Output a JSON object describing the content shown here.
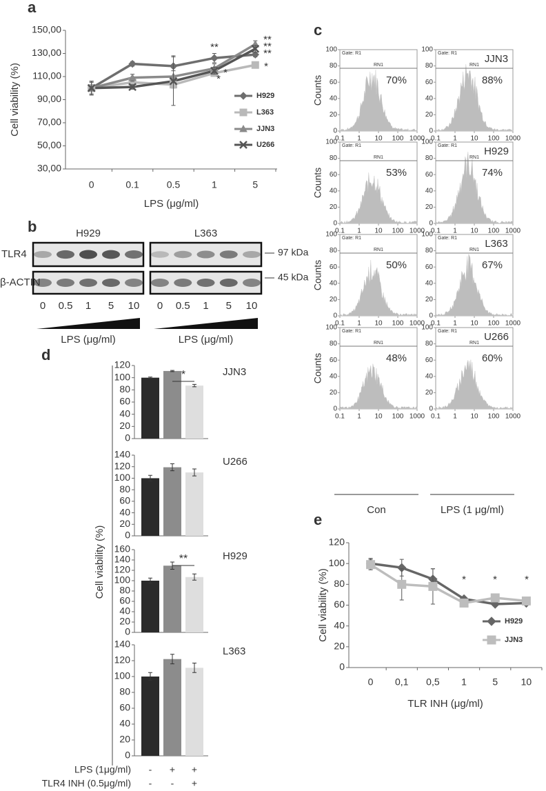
{
  "chart_data": [
    {
      "type": "line",
      "label": "a",
      "ylabel": "Cell viability (%)",
      "xlabel": "LPS (μg/ml)",
      "categories": [
        "0",
        "0.1",
        "0.5",
        "1",
        "5"
      ],
      "ylim": [
        30,
        150
      ],
      "yticks": [
        {
          "value": 30,
          "label": "30,00"
        },
        {
          "value": 50,
          "label": "50,00"
        },
        {
          "value": 70,
          "label": "70,00"
        },
        {
          "value": 90,
          "label": "90,00"
        },
        {
          "value": 110,
          "label": "110,00"
        },
        {
          "value": 130,
          "label": "130,00"
        },
        {
          "value": 150,
          "label": "150,00"
        }
      ],
      "series": [
        {
          "name": "H929",
          "color": "#6e6e6e",
          "marker": "diamond",
          "values": [
            100,
            121,
            119,
            126,
            129
          ],
          "errors": [
            3,
            2,
            9,
            4,
            2
          ]
        },
        {
          "name": "L363",
          "color": "#b9b9b9",
          "marker": "square",
          "values": [
            100,
            105,
            103,
            113,
            120
          ],
          "errors": [
            6,
            2,
            3,
            2,
            2
          ]
        },
        {
          "name": "JJN3",
          "color": "#8a8a8a",
          "marker": "triangle",
          "values": [
            100,
            109,
            110,
            117,
            138
          ],
          "errors": [
            6,
            3,
            5,
            4,
            3
          ]
        },
        {
          "name": "U266",
          "color": "#555555",
          "marker": "cross",
          "values": [
            100,
            101,
            106,
            115,
            134
          ],
          "errors": [
            5,
            2,
            21,
            3,
            3
          ]
        }
      ],
      "annotations": [
        "**",
        "**",
        "**",
        "*",
        "**",
        "*",
        "*"
      ]
    },
    {
      "type": "bar",
      "label": "d",
      "name": "JJN3",
      "values": [
        100,
        111,
        87
      ],
      "errors": [
        1,
        1,
        2
      ],
      "colors": [
        "#2b2b2b",
        "#8c8c8c",
        "#dedede"
      ],
      "ylim": [
        0,
        120
      ],
      "yticks": [
        0,
        20,
        40,
        60,
        80,
        100,
        120
      ],
      "annotations": [
        "*"
      ]
    },
    {
      "type": "bar",
      "name": "U266",
      "values": [
        100,
        119,
        110
      ],
      "errors": [
        5,
        6,
        6
      ],
      "colors": [
        "#2b2b2b",
        "#8c8c8c",
        "#dedede"
      ],
      "ylim": [
        0,
        140
      ],
      "yticks": [
        0,
        20,
        40,
        60,
        80,
        100,
        120,
        140
      ]
    },
    {
      "type": "bar",
      "name": "H929",
      "values": [
        100,
        129,
        107
      ],
      "errors": [
        5,
        7,
        6
      ],
      "colors": [
        "#2b2b2b",
        "#8c8c8c",
        "#dedede"
      ],
      "ylim": [
        0,
        160
      ],
      "yticks": [
        0,
        20,
        40,
        60,
        80,
        100,
        120,
        140,
        160
      ],
      "annotations": [
        "**"
      ]
    },
    {
      "type": "bar",
      "name": "L363",
      "values": [
        100,
        122,
        111
      ],
      "errors": [
        5,
        6,
        6
      ],
      "colors": [
        "#2b2b2b",
        "#8c8c8c",
        "#dedede"
      ],
      "ylim": [
        0,
        140
      ],
      "yticks": [
        0,
        20,
        40,
        60,
        80,
        100,
        120,
        140
      ]
    },
    {
      "type": "line",
      "label": "e",
      "ylabel": "Cell viability (%)",
      "xlabel": "TLR INH (μg/ml)",
      "categories": [
        "0",
        "0,1",
        "0,5",
        "1",
        "5",
        "10"
      ],
      "ylim": [
        0,
        120
      ],
      "yticks": [
        0,
        20,
        40,
        60,
        80,
        100,
        120
      ],
      "series": [
        {
          "name": "H929",
          "color": "#666666",
          "marker": "diamond",
          "values": [
            100,
            96,
            85,
            66,
            61,
            62
          ],
          "errors": [
            5,
            8,
            10,
            2,
            2,
            2
          ]
        },
        {
          "name": "JJN3",
          "color": "#bdbdbd",
          "marker": "square",
          "values": [
            99,
            80,
            78,
            62,
            67,
            64
          ],
          "errors": [
            5,
            15,
            17,
            2,
            2,
            3
          ]
        }
      ],
      "annotations": [
        "*",
        "*",
        "*"
      ]
    }
  ],
  "panel_d": {
    "ylabel": "Cell viability (%)",
    "treatments": [
      {
        "name": "LPS (1μg/ml)",
        "signs": [
          "-",
          "+",
          "+"
        ]
      },
      {
        "name": "TLR4 INH (0.5μg/ml)",
        "signs": [
          "-",
          "-",
          "+"
        ]
      }
    ]
  },
  "blot": {
    "label": "b",
    "cell_lines": [
      "H929",
      "L363"
    ],
    "proteins": [
      "TLR4",
      "β-ACTIN"
    ],
    "sizes": [
      "97 kDa",
      "45 kDa"
    ],
    "lanes": [
      "0",
      "0.5",
      "1",
      "5",
      "10"
    ],
    "xlabel": "LPS (μg/ml)"
  },
  "flow": {
    "label": "c",
    "gate": "Gate: R1",
    "marker": "RN1",
    "ylabel": "Counts",
    "xlim": [
      0.1,
      1000
    ],
    "xticks": [
      0.1,
      1,
      10,
      100,
      1000
    ],
    "ylim": [
      0,
      100
    ],
    "yticks": [
      0,
      20,
      40,
      60,
      80,
      100
    ],
    "columns": [
      "Con",
      "LPS (1 μg/ml)"
    ],
    "rows": [
      {
        "name": "JJN3",
        "values": [
          70,
          88
        ],
        "value_labels": [
          "70%",
          "88%"
        ]
      },
      {
        "name": "H929",
        "values": [
          53,
          74
        ],
        "value_labels": [
          "53%",
          "74%"
        ]
      },
      {
        "name": "L363",
        "values": [
          50,
          67
        ],
        "value_labels": [
          "50%",
          "67%"
        ]
      },
      {
        "name": "U266",
        "values": [
          48,
          60
        ],
        "value_labels": [
          "48%",
          "60%"
        ]
      }
    ]
  }
}
